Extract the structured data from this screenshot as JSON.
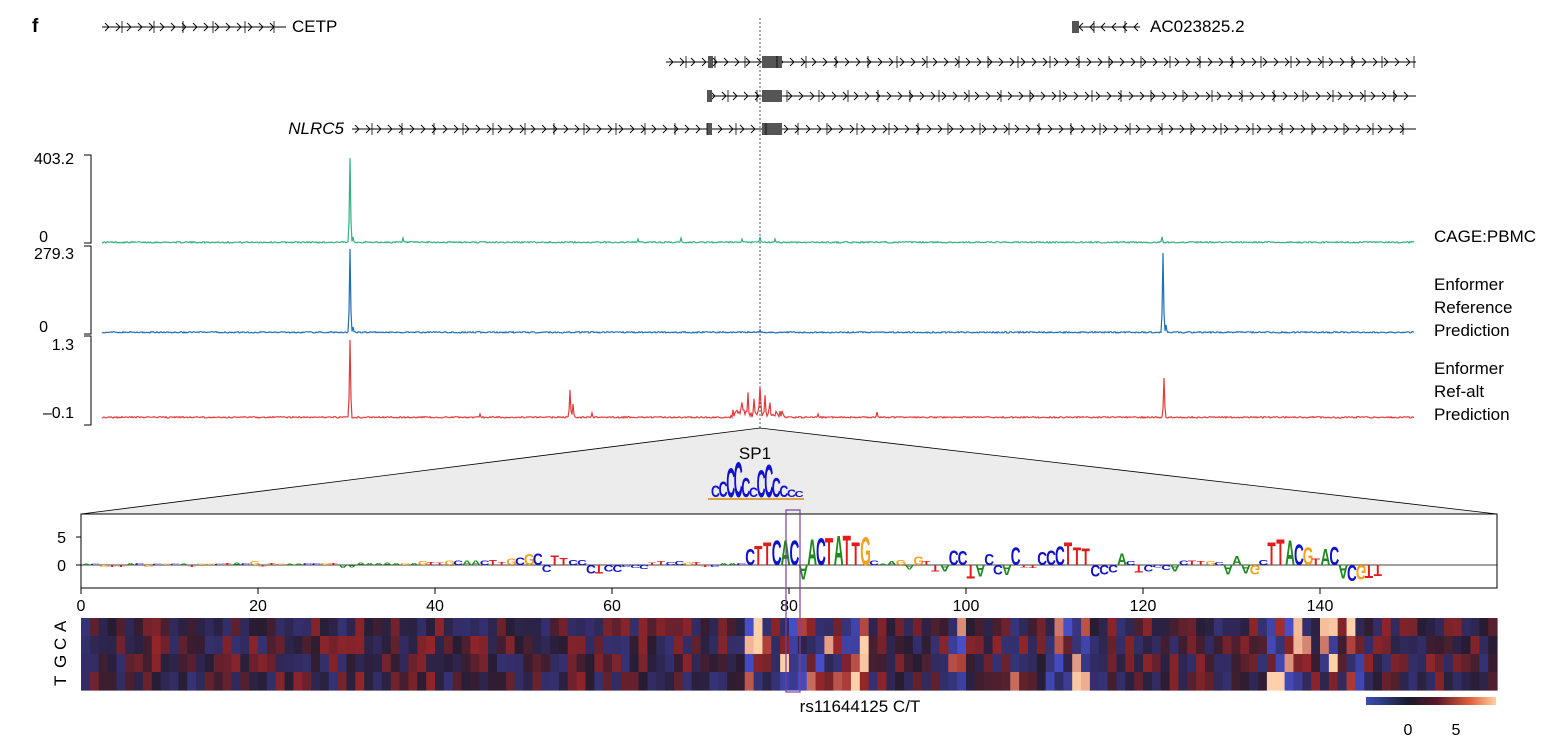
{
  "panel_letter": "f",
  "genes": {
    "cetp": "CETP",
    "ac023825": "AC023825.2",
    "nlrc5": "NLRC5"
  },
  "tracks": [
    {
      "label_lines": [
        "CAGE:PBMC"
      ],
      "ymax_label": "403.2",
      "ymin_label": "0",
      "color": "#2fb27f"
    },
    {
      "label_lines": [
        "Enformer",
        "Reference",
        "Prediction"
      ],
      "ymax_label": "279.3",
      "ymin_label": "0",
      "color": "#1f6fb4"
    },
    {
      "label_lines": [
        "Enformer",
        "Ref-alt",
        "Prediction"
      ],
      "ymax_label": "1.3",
      "ymin_label": "–0.1",
      "color": "#e33b3b"
    }
  ],
  "motif_label": "SP1",
  "variant_label": "rs11644125 C/T",
  "heatmap_row_labels": [
    "A",
    "C",
    "G",
    "T"
  ],
  "colorbar_ticks": [
    "0",
    "5"
  ],
  "colors": {
    "A": "#1e8a1e",
    "C": "#1111cc",
    "G": "#f5a21b",
    "T": "#e01b1b",
    "highlight": "#7a3fa0"
  },
  "chart_data": [
    {
      "type": "line",
      "title": "",
      "series": [
        {
          "name": "CAGE:PBMC",
          "x": [
            0,
            0.19,
            0.2,
            0.25,
            0.5,
            0.6,
            0.68,
            0.8,
            0.9,
            0.95,
            1.0
          ],
          "values": [
            0,
            5,
            403.2,
            8,
            5,
            15,
            10,
            4,
            18,
            5,
            0
          ]
        },
        {
          "name": "Enformer Reference Prediction",
          "x": [
            0,
            0.19,
            0.2,
            0.4,
            0.5,
            0.6,
            0.8,
            0.9,
            0.95,
            1.0
          ],
          "values": [
            0,
            3,
            279.3,
            3,
            2,
            3,
            2,
            279.3,
            5,
            0
          ]
        },
        {
          "name": "Enformer Ref-alt Prediction",
          "x": [
            0,
            0.19,
            0.2,
            0.35,
            0.45,
            0.5,
            0.6,
            0.8,
            0.9,
            0.95,
            1.0
          ],
          "values": [
            -0.1,
            0,
            1.3,
            0,
            0.4,
            0.1,
            0.5,
            0,
            0.6,
            0,
            -0.1
          ]
        }
      ]
    },
    {
      "type": "bar",
      "title": "",
      "x_ticks": [
        0,
        20,
        40,
        60,
        80,
        100,
        120,
        140
      ],
      "y_ticks": [
        0,
        5
      ],
      "xlim": [
        0,
        160
      ],
      "ylim": [
        -3,
        8
      ],
      "values": [
        0.2,
        0.2,
        -0.3,
        -0.4,
        -0.3,
        0.4,
        0.3,
        -0.3,
        0.2,
        0.2,
        0.2,
        0.2,
        -0.3,
        0.2,
        0.2,
        0.2,
        0.3,
        0.5,
        0.3,
        0.7,
        -0.2,
        0.3,
        0.2,
        0.2,
        0.2,
        0.3,
        0.3,
        0.3,
        0.3,
        -0.6,
        -0.5,
        0.5,
        0.4,
        0.3,
        0.5,
        0.3,
        0.4,
        0.4,
        0.7,
        0.6,
        0.5,
        0.8,
        0.8,
        0.8,
        0.8,
        0.8,
        0.9,
        0.6,
        1.2,
        1.4,
        2,
        2.1,
        -1.3,
        1.8,
        1.3,
        0.9,
        0.9,
        -1.6,
        -1.5,
        -1.2,
        -1.3,
        -0.3,
        -0.6,
        -0.7,
        0.5,
        0.7,
        0.6,
        0.7,
        0.5,
        0.6,
        -0.3,
        -0.3,
        0.3,
        0.3,
        0.3,
        3,
        3.6,
        4.2,
        4.5,
        4.5,
        4.6,
        -2.8,
        4.8,
        5,
        5,
        5.4,
        5.5,
        4.2,
        5.2,
        0.8,
        0.2,
        0.7,
        1,
        -0.8,
        1.5,
        0.7,
        -1.2,
        -1.2,
        2.7,
        2.6,
        -2.5,
        -2.2,
        2,
        -1.8,
        -1.9,
        3.2,
        -0.5,
        -0.6,
        2.4,
        2.8,
        3.5,
        4.2,
        3.2,
        3.1,
        -2.2,
        -1.8,
        -1.4,
        2.2,
        0.7,
        -1.4,
        -1.2,
        -0.5,
        -1,
        -1.2,
        0.8,
        0.8,
        0.7,
        0.7,
        0.6,
        -1.8,
        1.7,
        -1.5,
        -1.8,
        0.9,
        4.2,
        4.8,
        4.6,
        3.8,
        3.2,
        1.2,
        3,
        3.4,
        -2.5,
        -3,
        -2.8,
        -2.4,
        -2
      ]
    },
    {
      "type": "heatmap",
      "title": "",
      "rows": [
        "A",
        "C",
        "G",
        "T"
      ],
      "columns": 160,
      "color_range": [
        -3,
        8
      ]
    }
  ]
}
